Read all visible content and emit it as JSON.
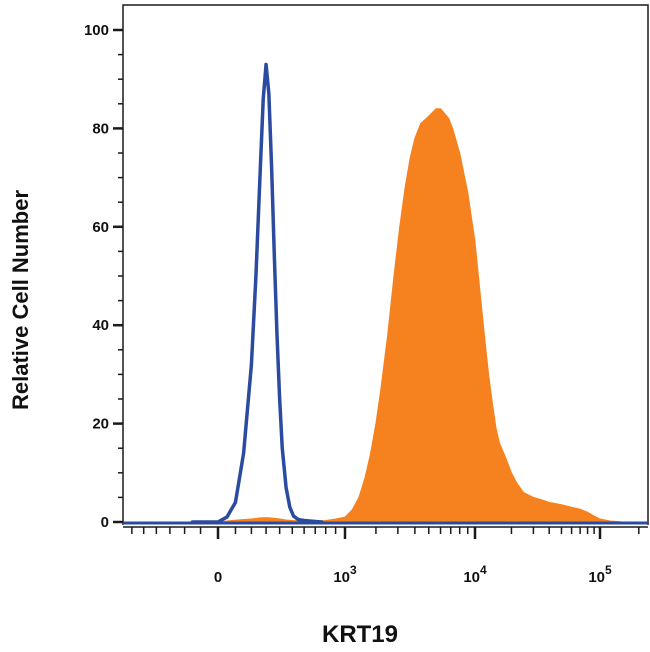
{
  "chart_data": {
    "type": "area",
    "title": "",
    "xlabel": "KRT19",
    "ylabel": "Relative Cell Number",
    "x_scale": "biexponential (linear near 0, logarithmic above 10^3)",
    "xlim": [
      -700,
      200000
    ],
    "ylim": [
      0,
      100
    ],
    "grid": false,
    "legend": "none",
    "y_ticks": [
      {
        "value": 0,
        "label": "0"
      },
      {
        "value": 20,
        "label": "20"
      },
      {
        "value": 40,
        "label": "40"
      },
      {
        "value": 60,
        "label": "60"
      },
      {
        "value": 80,
        "label": "80"
      },
      {
        "value": 100,
        "label": "100"
      }
    ],
    "x_ticks": [
      {
        "value": 0,
        "base": "0",
        "exp": ""
      },
      {
        "value": 1000,
        "base": "10",
        "exp": "3"
      },
      {
        "value": 10000,
        "base": "10",
        "exp": "4"
      },
      {
        "value": 100000,
        "base": "10",
        "exp": "5"
      }
    ],
    "series": [
      {
        "style": "filled",
        "color": "#F5821F",
        "x": [
          0,
          80,
          150,
          200,
          250,
          300,
          350,
          400,
          450,
          500,
          600,
          700,
          800,
          900,
          1000,
          1200,
          1400,
          1600,
          1800,
          2000,
          2200,
          2500,
          2800,
          3100,
          3400,
          3700,
          4000,
          4400,
          4800,
          5200,
          5600,
          6000,
          6400,
          6800,
          7200,
          8000,
          9000,
          10000,
          11000,
          12000,
          13000,
          14000,
          15000,
          16000,
          18000,
          20000,
          22000,
          25000,
          30000,
          35000,
          40000,
          50000,
          60000,
          70000,
          80000,
          90000,
          100000,
          120000,
          150000
        ],
        "y": [
          0,
          0.3,
          0.5,
          0.6,
          0.8,
          0.9,
          0.8,
          0.6,
          0.4,
          0.3,
          0.2,
          0.2,
          0.3,
          0.6,
          1.0,
          2.5,
          5,
          9,
          14,
          20,
          27,
          38,
          50,
          60,
          68,
          74,
          78,
          81,
          82,
          83,
          84,
          84,
          83,
          82,
          80,
          75,
          67,
          57,
          47,
          38,
          30,
          24,
          19,
          16,
          13,
          10,
          8,
          6,
          5,
          4.5,
          4,
          3.5,
          3,
          2.6,
          2,
          1.2,
          0.6,
          0.2,
          0
        ]
      },
      {
        "style": "outline",
        "color": "#2B4BA0",
        "x": [
          -150,
          0,
          50,
          100,
          150,
          200,
          230,
          260,
          280,
          300,
          320,
          340,
          360,
          380,
          400,
          420,
          450,
          480,
          510,
          550,
          600,
          650,
          700,
          760
        ],
        "y": [
          0,
          0,
          1,
          4,
          14,
          32,
          50,
          72,
          86,
          93,
          87,
          72,
          54,
          38,
          25,
          15,
          7,
          3,
          1.2,
          0.5,
          0.3,
          0.2,
          0.1,
          0
        ]
      }
    ]
  }
}
